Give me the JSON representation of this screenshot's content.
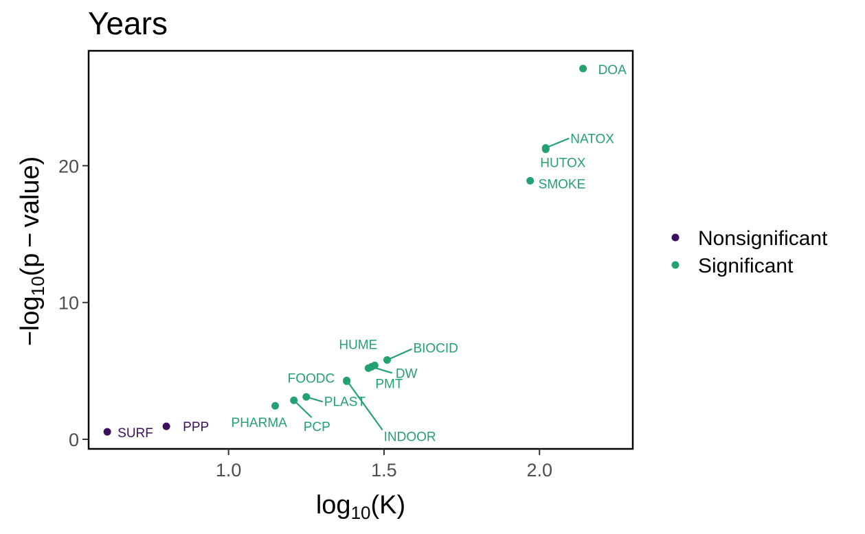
{
  "chart_data": {
    "type": "scatter",
    "title": "Years",
    "xlabel": {
      "base": "log",
      "sub": "10",
      "rest": "(K)"
    },
    "ylabel": {
      "prefix": "−log",
      "sub": "10",
      "rest": "(p − value)"
    },
    "xlim": [
      0.55,
      2.3
    ],
    "ylim": [
      -0.7,
      28.4
    ],
    "x_ticks": [
      1.0,
      1.5,
      2.0
    ],
    "x_tick_labels": [
      "1.0",
      "1.5",
      "2.0"
    ],
    "y_ticks": [
      0,
      10,
      20
    ],
    "y_tick_labels": [
      "0",
      "10",
      "20"
    ],
    "grid": false,
    "legend_position": "right",
    "colors": {
      "Nonsignificant": "#3b0f5e",
      "Significant": "#23a26f"
    },
    "legend": [
      {
        "name": "Nonsignificant",
        "label": "Nonsignificant"
      },
      {
        "name": "Significant",
        "label": "Significant"
      }
    ],
    "points": [
      {
        "label": "DOA",
        "x": 2.14,
        "y": 27.1,
        "group": "Significant"
      },
      {
        "label": "NATOX",
        "x": 2.02,
        "y": 21.3,
        "group": "Significant"
      },
      {
        "label": "HUTOX",
        "x": 2.02,
        "y": 21.2,
        "group": "Significant"
      },
      {
        "label": "SMOKE",
        "x": 1.97,
        "y": 18.9,
        "group": "Significant"
      },
      {
        "label": "BIOCID",
        "x": 1.51,
        "y": 5.8,
        "group": "Significant"
      },
      {
        "label": "HUME",
        "x": 1.47,
        "y": 5.4,
        "group": "Significant"
      },
      {
        "label": "DW",
        "x": 1.46,
        "y": 5.3,
        "group": "Significant"
      },
      {
        "label": "PMT",
        "x": 1.45,
        "y": 5.2,
        "group": "Significant"
      },
      {
        "label": "INDOOR",
        "x": 1.38,
        "y": 4.3,
        "group": "Significant"
      },
      {
        "label": "FOODC",
        "x": 1.38,
        "y": 4.25,
        "group": "Significant"
      },
      {
        "label": "PLAST",
        "x": 1.25,
        "y": 3.1,
        "group": "Significant"
      },
      {
        "label": "PCP",
        "x": 1.21,
        "y": 2.85,
        "group": "Significant"
      },
      {
        "label": "PHARMA",
        "x": 1.15,
        "y": 2.45,
        "group": "Significant"
      },
      {
        "label": "SURF",
        "x": 0.61,
        "y": 0.55,
        "group": "Nonsignificant"
      },
      {
        "label": "PPP",
        "x": 0.8,
        "y": 0.95,
        "group": "Nonsignificant"
      }
    ]
  }
}
